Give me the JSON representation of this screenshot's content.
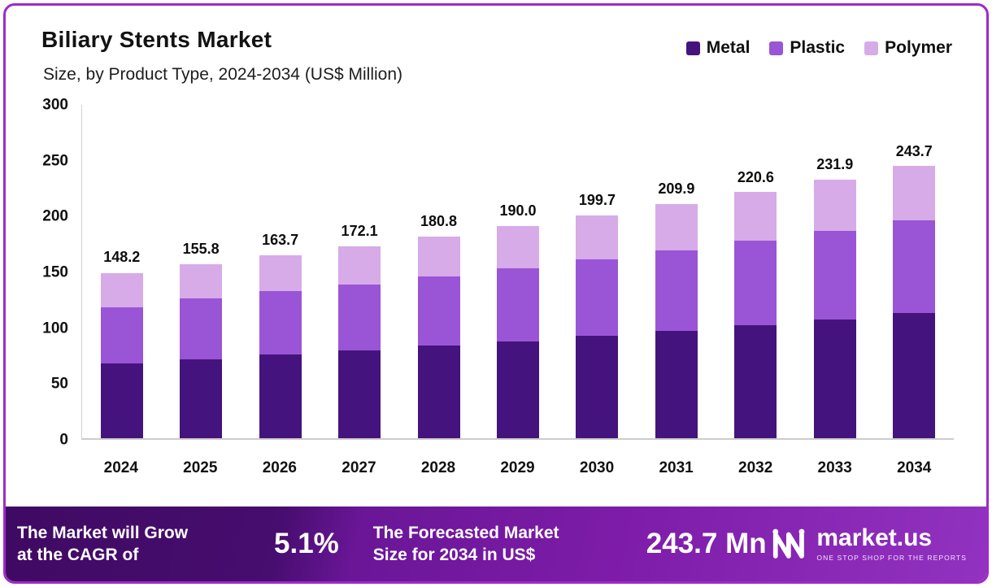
{
  "header": {
    "title": "Biliary Stents Market",
    "subtitle": "Size, by Product Type, 2024-2034 (US$ Million)"
  },
  "legend": [
    {
      "label": "Metal",
      "color": "#45137d"
    },
    {
      "label": "Plastic",
      "color": "#9a55d6"
    },
    {
      "label": "Polymer",
      "color": "#d7abe8"
    }
  ],
  "chart_data": {
    "type": "bar",
    "stacked": true,
    "title": "Biliary Stents Market",
    "subtitle": "Size, by Product Type, 2024-2034 (US$ Million)",
    "categories": [
      "2024",
      "2025",
      "2026",
      "2027",
      "2028",
      "2029",
      "2030",
      "2031",
      "2032",
      "2033",
      "2034"
    ],
    "series": [
      {
        "name": "Metal",
        "color": "#45137d",
        "values": [
          67,
          71,
          75,
          79,
          83,
          87,
          92,
          96,
          101,
          106,
          112
        ]
      },
      {
        "name": "Plastic",
        "color": "#9a55d6",
        "values": [
          50.5,
          54,
          56.5,
          58.5,
          62,
          65.5,
          68.5,
          72.5,
          76,
          80,
          83
        ]
      },
      {
        "name": "Polymer",
        "color": "#d7abe8",
        "values": [
          30.7,
          30.8,
          32.2,
          34.6,
          35.8,
          37.5,
          39.2,
          41.4,
          43.6,
          45.9,
          48.7
        ]
      }
    ],
    "totals": [
      148.2,
      155.8,
      163.7,
      172.1,
      180.8,
      190.0,
      199.7,
      209.9,
      220.6,
      231.9,
      243.7
    ],
    "total_labels": [
      "148.2",
      "155.8",
      "163.7",
      "172.1",
      "180.8",
      "190.0",
      "199.7",
      "209.9",
      "220.6",
      "231.9",
      "243.7"
    ],
    "xlabel": "",
    "ylabel": "",
    "ylim": [
      0,
      300
    ],
    "yticks": [
      0,
      50,
      100,
      150,
      200,
      250,
      300
    ],
    "grid": false,
    "legend_position": "top-right"
  },
  "banner": {
    "cagr_label": "The Market will Grow\nat the CAGR of",
    "cagr_value": "5.1%",
    "forecast_label": "The Forecasted Market\nSize for 2034 in US$",
    "forecast_value": "243.7 Mn",
    "brand": "market.us",
    "brand_tagline": "ONE STOP SHOP FOR THE REPORTS"
  }
}
